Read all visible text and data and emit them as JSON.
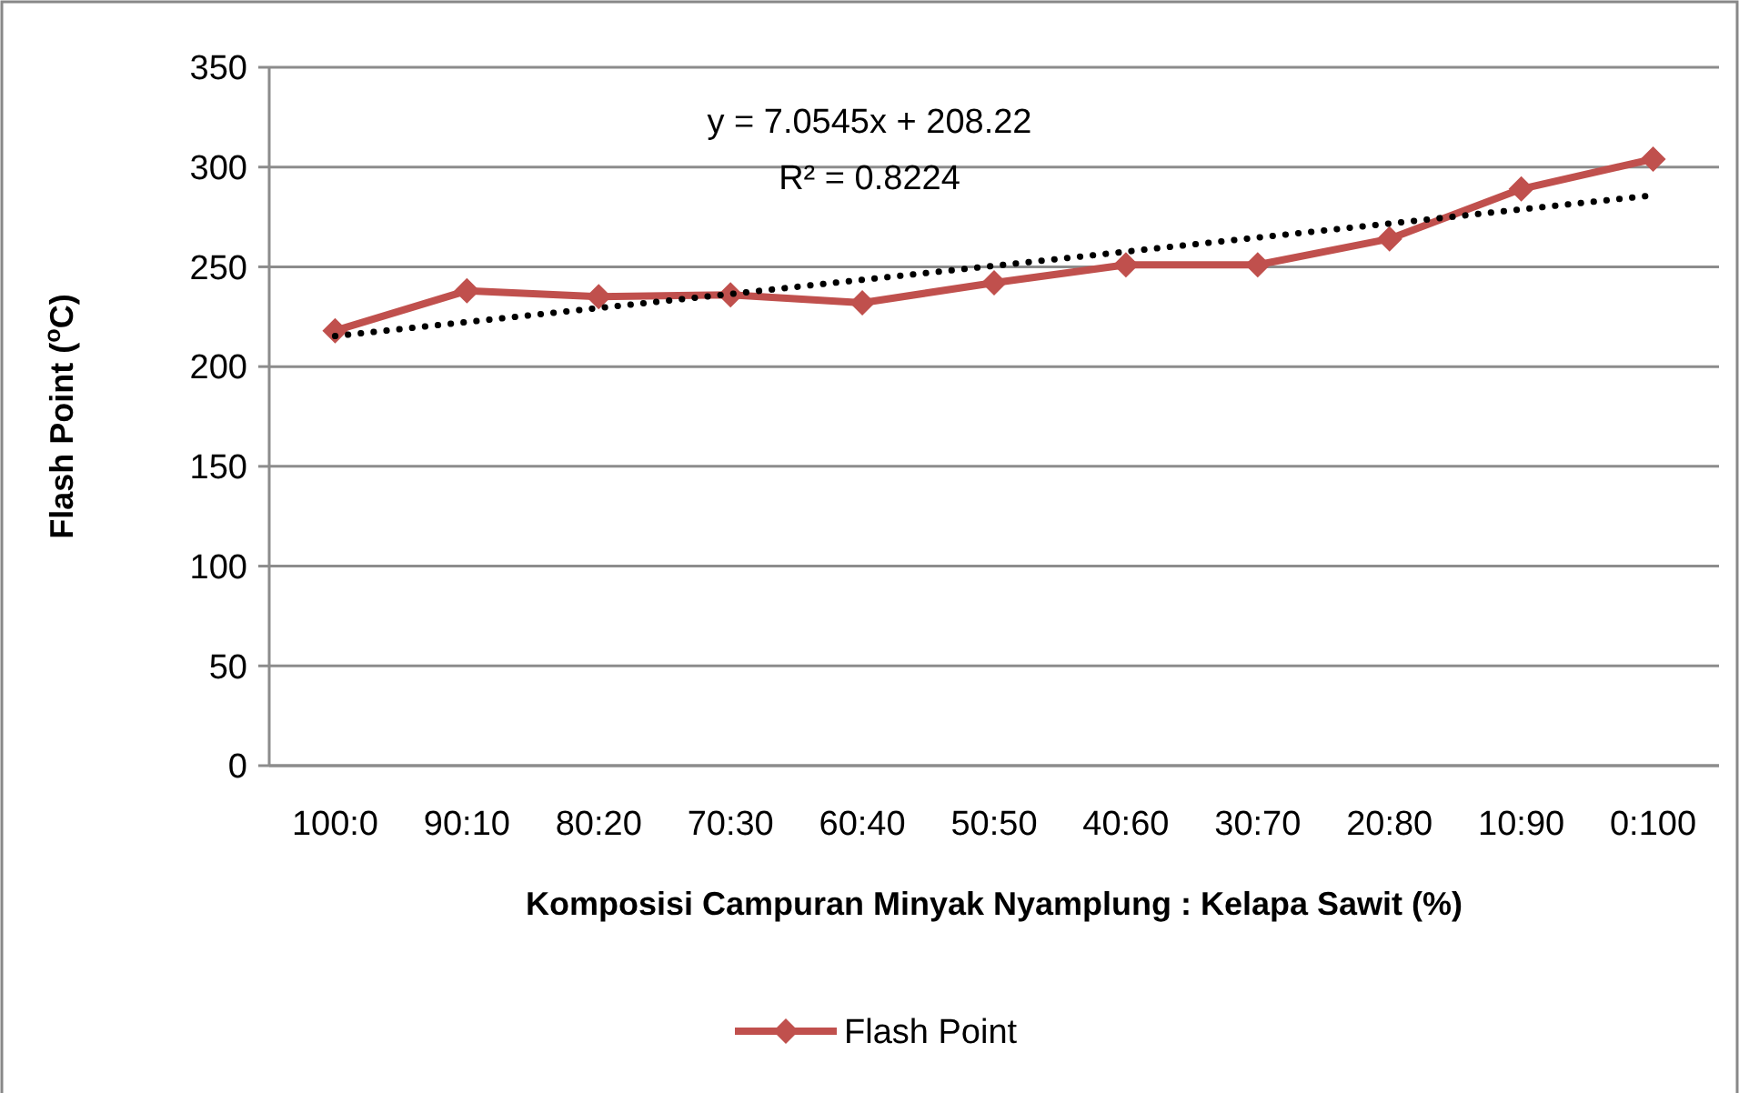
{
  "chart_data": {
    "type": "line",
    "xlabel": "Komposisi Campuran Minyak Nyamplung : Kelapa Sawit (%)",
    "ylabel": "Flash Point ($^{o}$C)",
    "categories": [
      "100:0",
      "90:10",
      "80:20",
      "70:30",
      "60:40",
      "50:50",
      "40:60",
      "30:70",
      "20:80",
      "10:90",
      "0:100"
    ],
    "series": [
      {
        "name": "Flash Point",
        "color": "#c0504d",
        "marker": "diamond",
        "line_style": "solid",
        "values": [
          218,
          238,
          235,
          236,
          232,
          242,
          251,
          251,
          264,
          289,
          304
        ]
      },
      {
        "color": "#000000",
        "marker": "none",
        "line_style": "dotted",
        "values": [
          215.3,
          222.3,
          229.4,
          236.4,
          243.5,
          250.5,
          257.6,
          264.7,
          271.7,
          278.8,
          285.8
        ]
      }
    ],
    "annotations": [
      "y = 7.0545x + 208.22",
      "R² = 0.8224"
    ],
    "ylim": [
      0,
      350
    ],
    "yticks": [
      0,
      50,
      100,
      150,
      200,
      250,
      300,
      350
    ],
    "grid": "y",
    "legend": "bottom"
  }
}
